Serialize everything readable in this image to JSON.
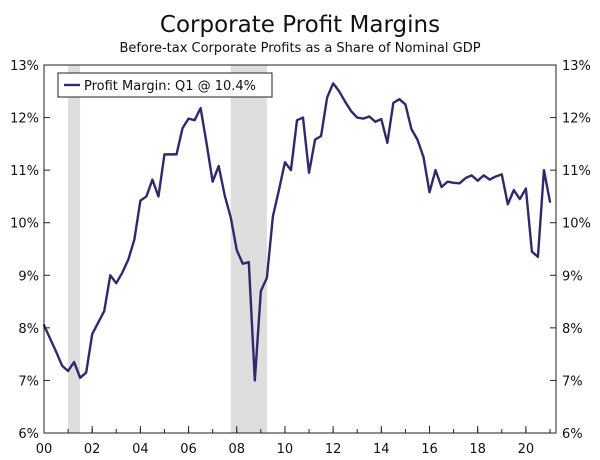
{
  "chart_data": {
    "type": "line",
    "title": "Corporate Profit Margins",
    "subtitle": "Before-tax Corporate Profits as a Share of Nominal GDP",
    "legend_placement": "top-left",
    "grid": false,
    "xlim": [
      2000,
      2021.25
    ],
    "ylim": [
      6,
      13
    ],
    "x_tick_values": [
      2000,
      2002,
      2004,
      2006,
      2008,
      2010,
      2012,
      2014,
      2016,
      2018,
      2020
    ],
    "x_tick_labels": [
      "00",
      "02",
      "04",
      "06",
      "08",
      "10",
      "12",
      "14",
      "16",
      "18",
      "20"
    ],
    "y_tick_values": [
      6,
      7,
      8,
      9,
      10,
      11,
      12,
      13
    ],
    "y_tick_labels": [
      "6%",
      "7%",
      "8%",
      "9%",
      "10%",
      "11%",
      "12%",
      "13%"
    ],
    "recessions": [
      [
        2001.0,
        2001.5
      ],
      [
        2007.75,
        2009.25
      ]
    ],
    "colors": {
      "line": "#2e2a6b",
      "recession": "#dedede",
      "axis": "#222222"
    },
    "series": [
      {
        "name": "Profit Margin: Q1 @ 10.4%",
        "x": [
          2000.0,
          2000.25,
          2000.5,
          2000.75,
          2001.0,
          2001.25,
          2001.5,
          2001.75,
          2002.0,
          2002.25,
          2002.5,
          2002.75,
          2003.0,
          2003.25,
          2003.5,
          2003.75,
          2004.0,
          2004.25,
          2004.5,
          2004.75,
          2005.0,
          2005.25,
          2005.5,
          2005.75,
          2006.0,
          2006.25,
          2006.5,
          2006.75,
          2007.0,
          2007.25,
          2007.5,
          2007.75,
          2008.0,
          2008.25,
          2008.5,
          2008.75,
          2009.0,
          2009.25,
          2009.5,
          2009.75,
          2010.0,
          2010.25,
          2010.5,
          2010.75,
          2011.0,
          2011.25,
          2011.5,
          2011.75,
          2012.0,
          2012.25,
          2012.5,
          2012.75,
          2013.0,
          2013.25,
          2013.5,
          2013.75,
          2014.0,
          2014.25,
          2014.5,
          2014.75,
          2015.0,
          2015.25,
          2015.5,
          2015.75,
          2016.0,
          2016.25,
          2016.5,
          2016.75,
          2017.0,
          2017.25,
          2017.5,
          2017.75,
          2018.0,
          2018.25,
          2018.5,
          2018.75,
          2019.0,
          2019.25,
          2019.5,
          2019.75,
          2020.0,
          2020.25,
          2020.5,
          2020.75,
          2021.0
        ],
        "values": [
          8.05,
          7.8,
          7.55,
          7.28,
          7.18,
          7.35,
          7.05,
          7.15,
          7.88,
          8.1,
          8.32,
          9.0,
          8.85,
          9.05,
          9.3,
          9.68,
          10.42,
          10.5,
          10.82,
          10.5,
          11.3,
          11.3,
          11.3,
          11.8,
          11.98,
          11.95,
          12.18,
          11.5,
          10.78,
          11.08,
          10.52,
          10.1,
          9.48,
          9.22,
          9.25,
          7.0,
          8.7,
          8.95,
          10.12,
          10.62,
          11.15,
          11.0,
          11.95,
          12.0,
          10.95,
          11.58,
          11.65,
          12.38,
          12.65,
          12.5,
          12.3,
          12.12,
          12.0,
          11.98,
          12.02,
          11.92,
          11.97,
          11.52,
          12.28,
          12.35,
          12.25,
          11.78,
          11.58,
          11.25,
          10.58,
          11.0,
          10.68,
          10.78,
          10.76,
          10.75,
          10.85,
          10.9,
          10.8,
          10.9,
          10.82,
          10.88,
          10.92,
          10.35,
          10.62,
          10.45,
          10.65,
          9.45,
          9.35,
          11.0,
          10.4
        ]
      }
    ]
  }
}
